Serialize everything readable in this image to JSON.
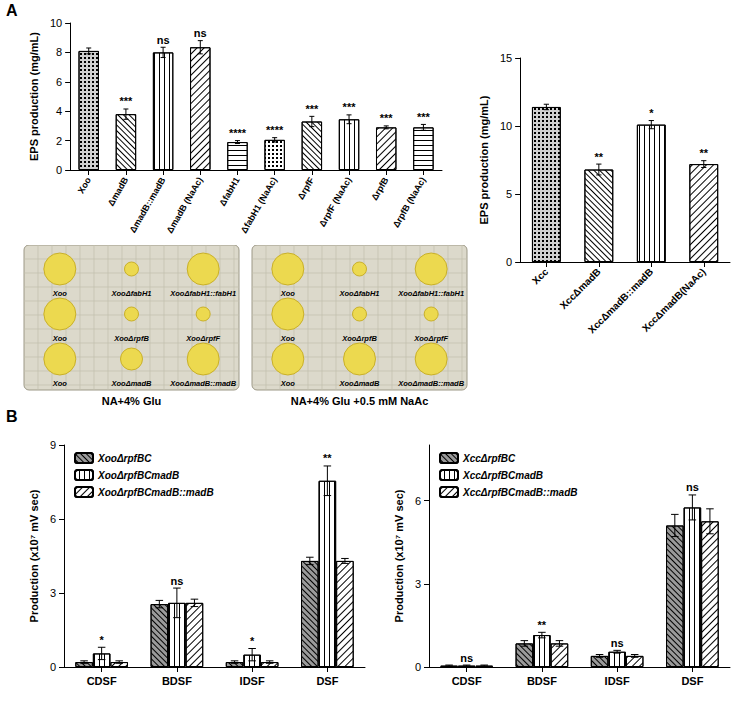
{
  "panel_labels": [
    "A",
    "B"
  ],
  "chart_data": [
    {
      "type": "bar",
      "categories": [
        "Xoo",
        "ΔmadB",
        "ΔmadB::madB",
        "ΔmadB (NaAc)",
        "ΔfabH1",
        "ΔfabH1 (NaAc)",
        "ΔrpfF",
        "ΔrpfF (NaAc)",
        "ΔrpfB",
        "ΔrpfB (NaAc)"
      ],
      "values": [
        8.1,
        3.8,
        8.0,
        8.35,
        1.9,
        2.05,
        3.3,
        3.45,
        2.9,
        2.9
      ],
      "errors": [
        0.2,
        0.35,
        0.35,
        0.45,
        0.1,
        0.15,
        0.35,
        0.3,
        0.1,
        0.2
      ],
      "significance": [
        null,
        "***",
        "ns",
        "ns",
        "****",
        "****",
        "***",
        "***",
        "***",
        "***"
      ],
      "colors": [
        "#d0d0d0",
        "#ffffff",
        "#ffffff",
        "#ffffff",
        "#ffffff",
        "#ffffff",
        "#ffffff",
        "#ffffff",
        "#ffffff",
        "#ffffff"
      ],
      "ylabel": "EPS production (mg/mL)",
      "ylim": [
        0,
        10
      ],
      "yticks": [
        0,
        2,
        4,
        6,
        8,
        10
      ],
      "grid": false
    },
    {
      "type": "bar",
      "categories": [
        "Xcc",
        "XccΔmadB",
        "XccΔmadB::madB",
        "XccΔmadB(NaAc)"
      ],
      "values": [
        11.4,
        6.8,
        10.1,
        7.2
      ],
      "errors": [
        0.2,
        0.4,
        0.3,
        0.25
      ],
      "significance": [
        null,
        "**",
        "*",
        "**"
      ],
      "colors": [
        "#d0d0d0",
        "#ffffff",
        "#ffffff",
        "#ffffff"
      ],
      "ylabel": "EPS production (mg/mL)",
      "ylim": [
        0,
        15
      ],
      "yticks": [
        0,
        5,
        10,
        15
      ],
      "grid": false
    },
    {
      "type": "bar",
      "categories": [
        "CDSF",
        "BDSF",
        "IDSF",
        "DSF"
      ],
      "series": [
        {
          "name": "XooΔrpfBC",
          "color": "#9a9a9a",
          "values": [
            0.2,
            2.55,
            0.2,
            4.3
          ],
          "errors": [
            0.05,
            0.15,
            0.05,
            0.15
          ]
        },
        {
          "name": "XooΔrpfBCmadB",
          "color": "#ffffff",
          "values": [
            0.55,
            2.6,
            0.5,
            7.55
          ],
          "errors": [
            0.25,
            0.6,
            0.25,
            0.6
          ],
          "significance": [
            "*",
            "ns",
            "*",
            "**"
          ]
        },
        {
          "name": "XooΔrpfBCmadB::madB",
          "color": "#ffffff",
          "values": [
            0.2,
            2.6,
            0.2,
            4.3
          ],
          "errors": [
            0.05,
            0.15,
            0.05,
            0.1
          ]
        }
      ],
      "ylabel": "Production (x10⁷ mV sec)",
      "ylim": [
        0,
        9
      ],
      "yticks": [
        0,
        3,
        6,
        9
      ],
      "grid": false,
      "legend": "top-left"
    },
    {
      "type": "bar",
      "categories": [
        "CDSF",
        "BDSF",
        "IDSF",
        "DSF"
      ],
      "series": [
        {
          "name": "XccΔrpfBC",
          "color": "#9a9a9a",
          "values": [
            0.05,
            0.85,
            0.4,
            5.1
          ],
          "errors": [
            0.02,
            0.1,
            0.05,
            0.4
          ]
        },
        {
          "name": "XccΔrpfBCmadB",
          "color": "#ffffff",
          "values": [
            0.05,
            1.15,
            0.55,
            5.75
          ],
          "errors": [
            0.02,
            0.1,
            0.05,
            0.45
          ],
          "significance": [
            "ns",
            "**",
            "ns",
            "ns"
          ]
        },
        {
          "name": "XccΔrpfBCmadB::madB",
          "color": "#ffffff",
          "values": [
            0.05,
            0.85,
            0.4,
            5.25
          ],
          "errors": [
            0.02,
            0.1,
            0.05,
            0.45
          ]
        }
      ],
      "ylabel": "Production (x10⁷ mV sec)",
      "ylim": [
        0,
        8
      ],
      "yticks": [
        0,
        3,
        6
      ],
      "grid": false,
      "legend": "top-left"
    }
  ],
  "plates": [
    {
      "caption": "NA+4% Glu",
      "colonies": [
        "Xoo",
        "XooΔfabH1",
        "XooΔfabH1::fabH1",
        "Xoo",
        "XooΔrpfB",
        "XooΔrpfF",
        "Xoo",
        "XooΔmadB",
        "XooΔmadB::madB"
      ]
    },
    {
      "caption": "NA+4% Glu +0.5 mM NaAc",
      "colonies": [
        "Xoo",
        "XooΔfabH1",
        "XooΔfabH1::fabH1",
        "Xoo",
        "XooΔrpfB",
        "XooΔrpfF",
        "Xoo",
        "XooΔmadB",
        "XooΔmadB::madB"
      ]
    }
  ]
}
